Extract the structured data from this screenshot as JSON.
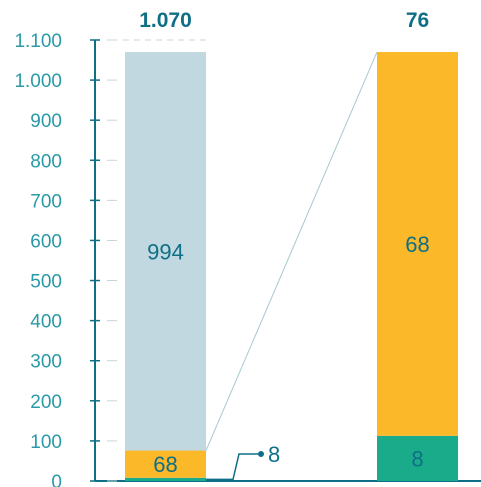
{
  "colors": {
    "axis": "#0e6f86",
    "tick_text": "#2a9aa8",
    "label_text": "#0e6f86",
    "light_blue": "#c2d8e0",
    "orange": "#fbb829",
    "green": "#1aac8a",
    "connector": "#a9c9d2"
  },
  "chart_data": {
    "type": "bar",
    "stacked": true,
    "ylim": [
      0,
      1100
    ],
    "yticks": [
      0,
      100,
      200,
      300,
      400,
      500,
      600,
      700,
      800,
      900,
      1000,
      1100
    ],
    "ytick_labels": [
      "0",
      "100",
      "200",
      "300",
      "400",
      "500",
      "600",
      "700",
      "800",
      "900",
      "1.000",
      "1.100"
    ],
    "grid": "dashed at 1100 only",
    "bars": [
      {
        "scale": "main",
        "total": 1070,
        "total_label": "1.070",
        "segments": [
          {
            "value": 8,
            "color": "green",
            "label": "8",
            "callout": true
          },
          {
            "value": 68,
            "color": "orange",
            "label": "68"
          },
          {
            "value": 994,
            "color": "light_blue",
            "label": "994"
          }
        ]
      },
      {
        "scale": "zoom of lower 76",
        "total": 76,
        "total_label": "76",
        "segments": [
          {
            "value": 8,
            "color": "green",
            "label": "8"
          },
          {
            "value": 68,
            "color": "orange",
            "label": "68"
          }
        ]
      }
    ]
  }
}
